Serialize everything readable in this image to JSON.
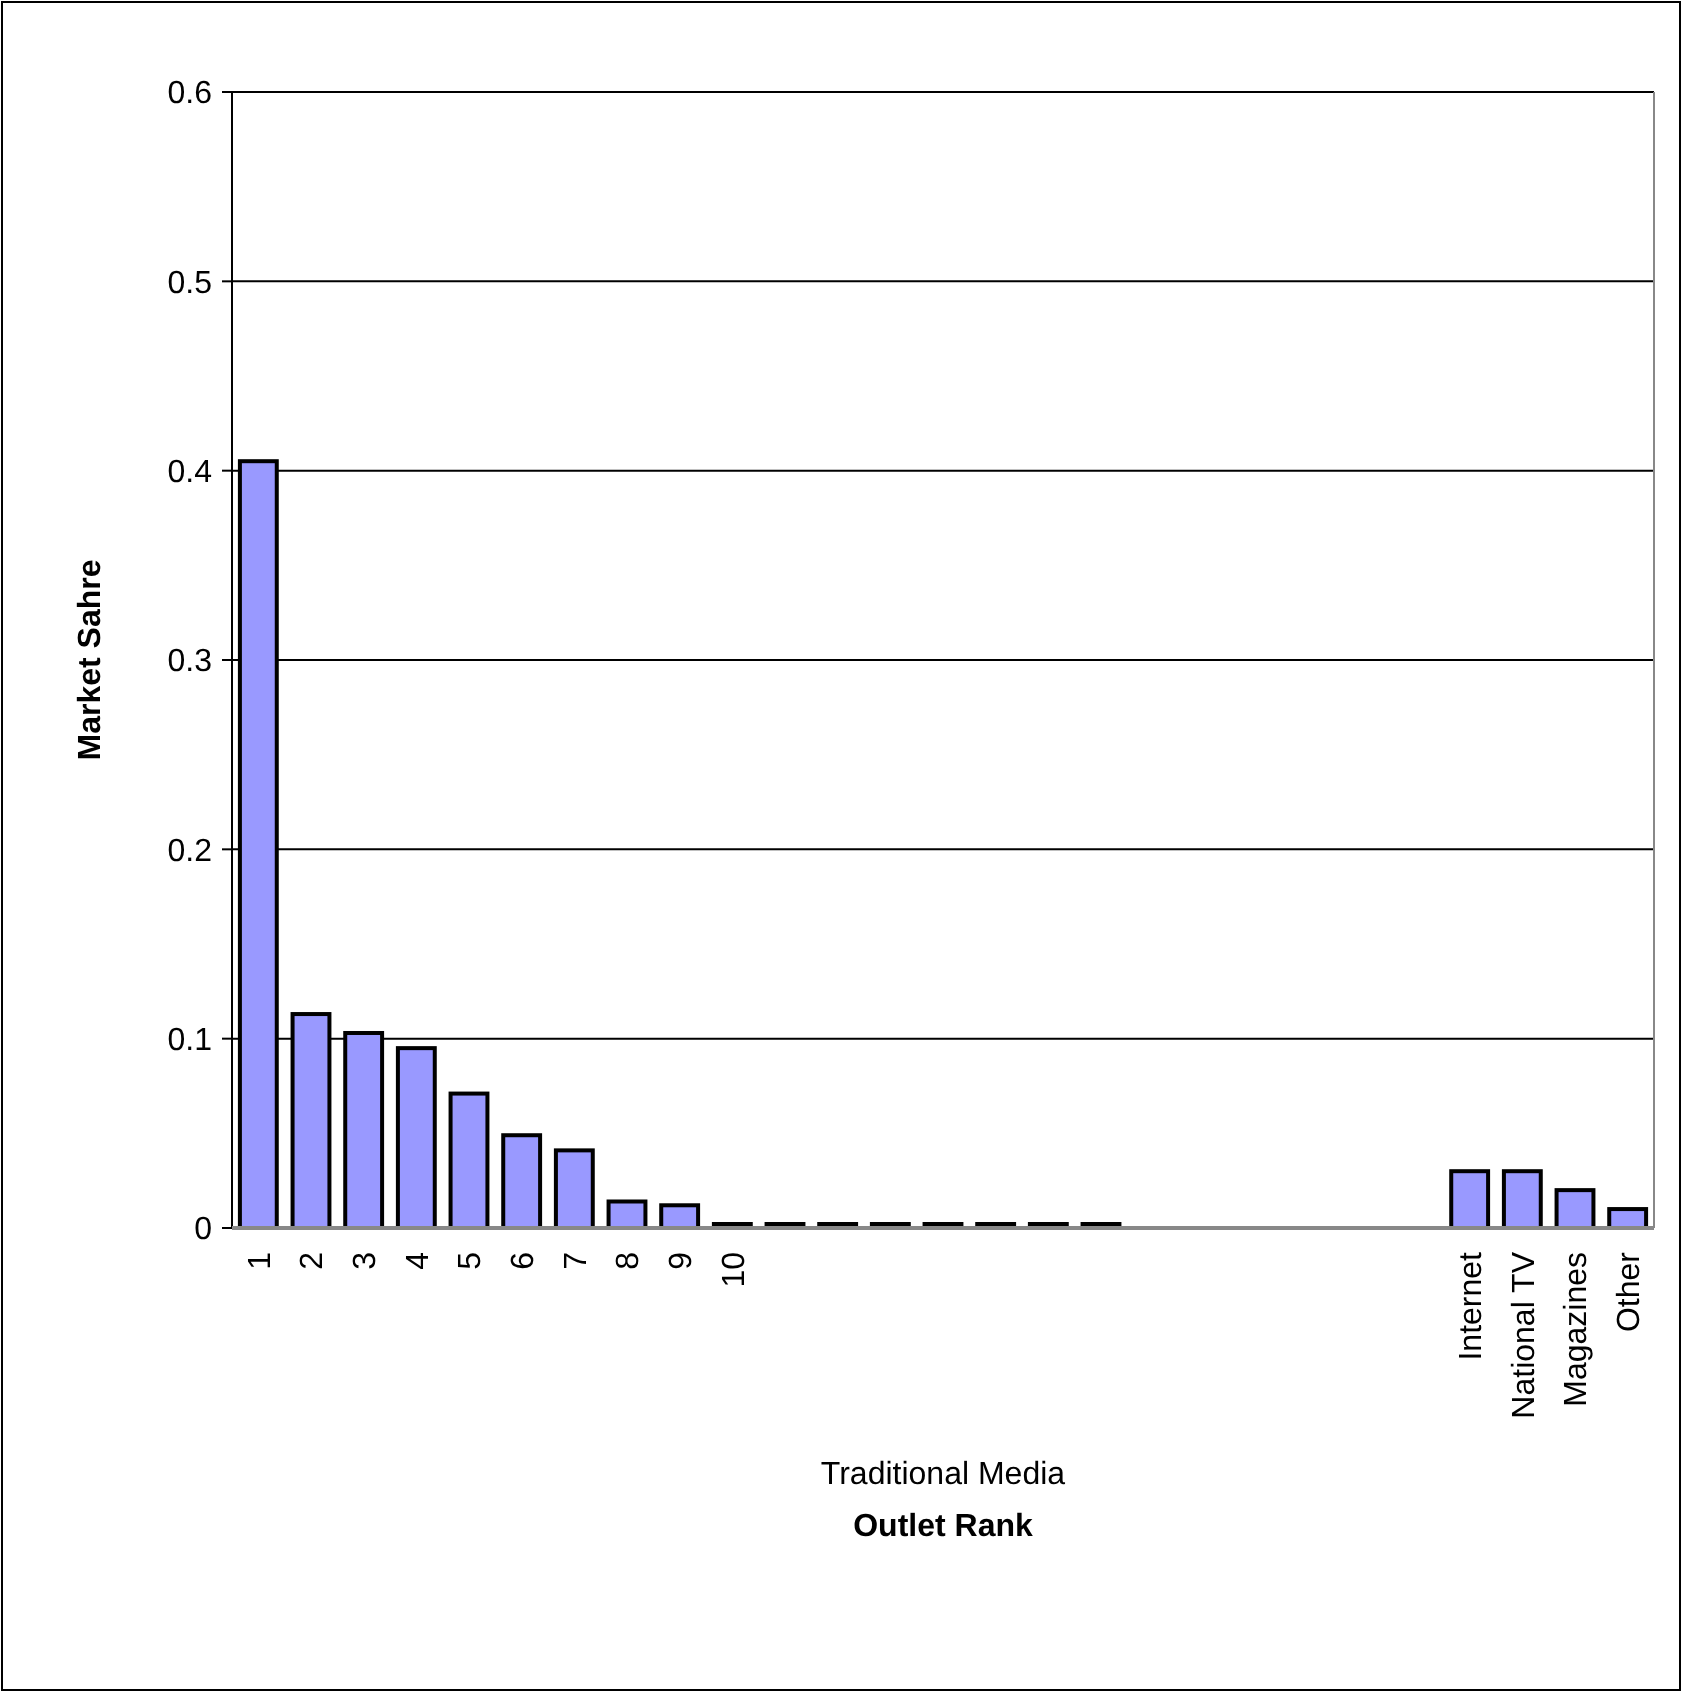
{
  "chart_data": {
    "type": "bar",
    "xlabel": "Outlet Rank",
    "ylabel": "Market Sahre",
    "annotations": [
      "Traditional Media"
    ],
    "categories": [
      "1",
      "2",
      "3",
      "4",
      "5",
      "6",
      "7",
      "8",
      "9",
      "10",
      null,
      null,
      null,
      null,
      null,
      null,
      null,
      null,
      null,
      null,
      null,
      null,
      null,
      "Internet",
      "National TV",
      "Magazines",
      "Other"
    ],
    "values": [
      0.405,
      0.113,
      0.103,
      0.095,
      0.071,
      0.049,
      0.041,
      0.014,
      0.012,
      0,
      0,
      0,
      0,
      0,
      0,
      0,
      0,
      null,
      null,
      null,
      null,
      null,
      null,
      0.03,
      0.03,
      0.02,
      0.01
    ],
    "color": "#9999ff",
    "ylim": [
      0,
      0.6
    ],
    "yticks": [
      0,
      0.1,
      0.2,
      0.3,
      0.4,
      0.5,
      0.6
    ],
    "grid": "y"
  }
}
